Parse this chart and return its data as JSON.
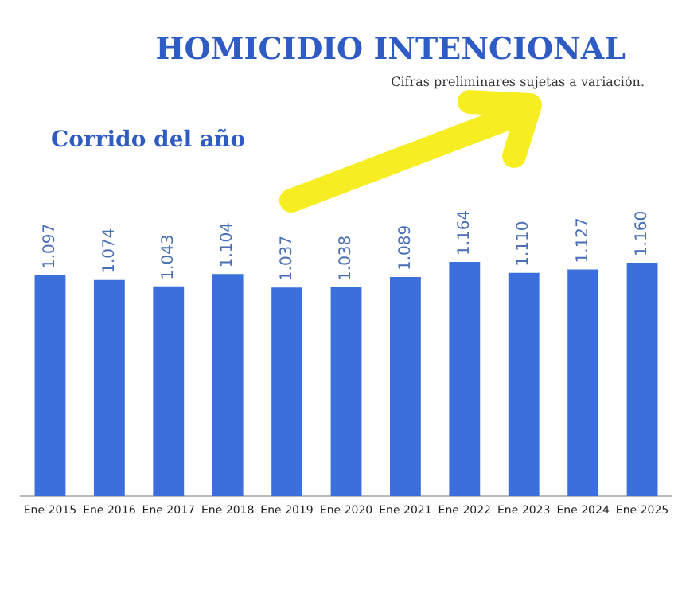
{
  "chart_data": {
    "type": "bar",
    "title": "HOMICIDIO INTENCIONAL",
    "subtitle": "Corrido del año",
    "annotations": [
      "Cifras preliminares sujetas a variación."
    ],
    "categories": [
      "Ene 2015",
      "Ene 2016",
      "Ene 2017",
      "Ene 2018",
      "Ene 2019",
      "Ene 2020",
      "Ene 2021",
      "Ene 2022",
      "Ene 2023",
      "Ene 2024",
      "Ene 2025"
    ],
    "values": [
      1097,
      1074,
      1043,
      1104,
      1037,
      1038,
      1089,
      1164,
      1110,
      1127,
      1160
    ],
    "value_labels": [
      "1.097",
      "1.074",
      "1.043",
      "1.104",
      "1.037",
      "1.038",
      "1.089",
      "1.164",
      "1.110",
      "1.127",
      "1.160"
    ],
    "color": "#3a6fdc",
    "tick_labels": "x",
    "grid": false,
    "legend": false
  }
}
